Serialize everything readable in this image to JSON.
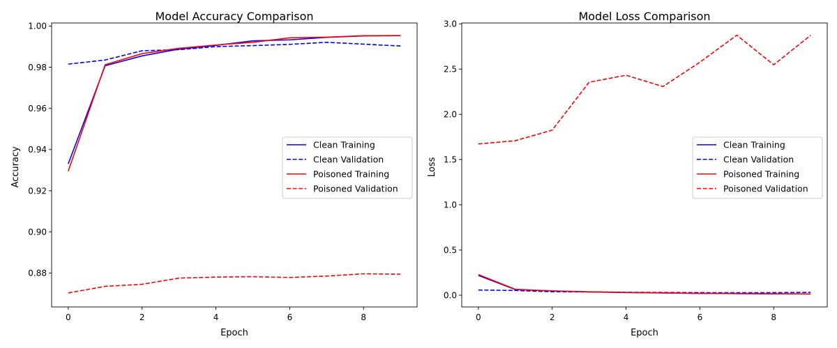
{
  "chart_data": [
    {
      "type": "line",
      "title": "Model Accuracy Comparison",
      "xlabel": "Epoch",
      "ylabel": "Accuracy",
      "x": [
        0,
        1,
        2,
        3,
        4,
        5,
        6,
        7,
        8,
        9
      ],
      "xlim": [
        -0.45,
        9.45
      ],
      "ylim": [
        0.8635,
        1.0015
      ],
      "xticks": [
        0,
        2,
        4,
        6,
        8
      ],
      "yticks": [
        0.88,
        0.9,
        0.92,
        0.94,
        0.96,
        0.98,
        1.0
      ],
      "ytick_labels": [
        "0.88",
        "0.90",
        "0.92",
        "0.94",
        "0.96",
        "0.98",
        "1.00"
      ],
      "legend_position": "center-right",
      "grid": false,
      "series": [
        {
          "name": "Clean Training",
          "color": "#0000ff",
          "style": "solid",
          "values": [
            0.933,
            0.9807,
            0.9855,
            0.9888,
            0.9906,
            0.9928,
            0.9933,
            0.9945,
            0.9952,
            0.9953
          ]
        },
        {
          "name": "Clean Validation",
          "color": "#0000ff",
          "style": "dashed",
          "values": [
            0.9815,
            0.9835,
            0.988,
            0.9885,
            0.99,
            0.9905,
            0.9911,
            0.9921,
            0.9912,
            0.9903
          ]
        },
        {
          "name": "Poisoned Training",
          "color": "#ff0000",
          "style": "solid",
          "values": [
            0.9295,
            0.9812,
            0.9866,
            0.9892,
            0.9908,
            0.9921,
            0.9943,
            0.9946,
            0.9953,
            0.9954
          ]
        },
        {
          "name": "Poisoned Validation",
          "color": "#ff0000",
          "style": "dashed",
          "values": [
            0.8703,
            0.8735,
            0.8745,
            0.8775,
            0.878,
            0.8782,
            0.8778,
            0.8785,
            0.8796,
            0.8794
          ]
        }
      ]
    },
    {
      "type": "line",
      "title": "Model Loss Comparison",
      "xlabel": "Epoch",
      "ylabel": "Loss",
      "x": [
        0,
        1,
        2,
        3,
        4,
        5,
        6,
        7,
        8,
        9
      ],
      "xlim": [
        -0.45,
        9.45
      ],
      "ylim": [
        -0.13,
        3.01
      ],
      "xticks": [
        0,
        2,
        4,
        6,
        8
      ],
      "yticks": [
        0.0,
        0.5,
        1.0,
        1.5,
        2.0,
        2.5,
        3.0
      ],
      "ytick_labels": [
        "0.0",
        "0.5",
        "1.0",
        "1.5",
        "2.0",
        "2.5",
        "3.0"
      ],
      "legend_position": "center-right",
      "grid": false,
      "series": [
        {
          "name": "Clean Training",
          "color": "#0000ff",
          "style": "solid",
          "values": [
            0.218,
            0.062,
            0.047,
            0.036,
            0.029,
            0.024,
            0.02,
            0.018,
            0.015,
            0.014
          ]
        },
        {
          "name": "Clean Validation",
          "color": "#0000ff",
          "style": "dashed",
          "values": [
            0.057,
            0.052,
            0.038,
            0.036,
            0.032,
            0.03,
            0.028,
            0.027,
            0.028,
            0.031
          ]
        },
        {
          "name": "Poisoned Training",
          "color": "#ff0000",
          "style": "solid",
          "values": [
            0.228,
            0.065,
            0.048,
            0.038,
            0.03,
            0.025,
            0.019,
            0.018,
            0.016,
            0.014
          ]
        },
        {
          "name": "Poisoned Validation",
          "color": "#ff0000",
          "style": "dashed",
          "values": [
            1.672,
            1.708,
            1.825,
            2.355,
            2.432,
            2.307,
            2.576,
            2.875,
            2.548,
            2.873
          ]
        }
      ]
    }
  ]
}
